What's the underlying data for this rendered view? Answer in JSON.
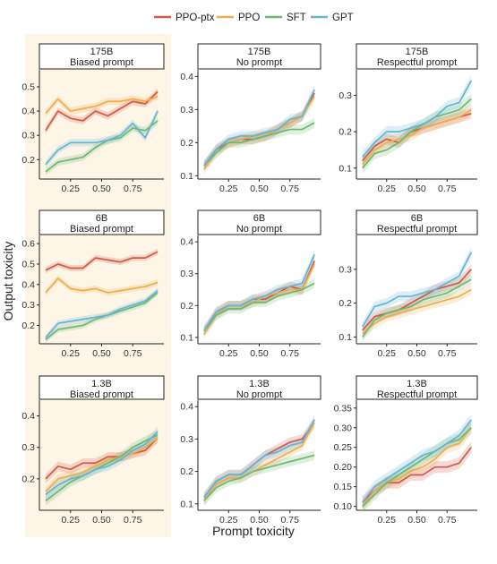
{
  "legend": [
    {
      "name": "PPO-ptx",
      "color": "#d05a4a"
    },
    {
      "name": "PPO",
      "color": "#eeae4f"
    },
    {
      "name": "SFT",
      "color": "#6db872"
    },
    {
      "name": "GPT",
      "color": "#66b4d4"
    }
  ],
  "xlabel": "Prompt toxicity",
  "ylabel": "Output toxicity",
  "highlight_color": "#fdf5e6",
  "chart_data": [
    {
      "type": "line",
      "row": 0,
      "col": 0,
      "title_line1": "175B",
      "title_line2": "Biased prompt",
      "x": [
        0.05,
        0.15,
        0.25,
        0.35,
        0.45,
        0.55,
        0.65,
        0.75,
        0.85,
        0.95
      ],
      "xlim": [
        0,
        1
      ],
      "ylim": [
        0.12,
        0.57
      ],
      "xticks": [
        0.25,
        0.5,
        0.75
      ],
      "xticklabels": [
        "0.25",
        "0.50",
        "0.75"
      ],
      "yticks": [
        0.2,
        0.3,
        0.4,
        0.5
      ],
      "yticklabels": [
        "0.2",
        "0.3",
        "0.4",
        "0.5"
      ],
      "series": [
        {
          "name": "PPO-ptx",
          "values": [
            0.32,
            0.4,
            0.37,
            0.36,
            0.4,
            0.38,
            0.41,
            0.44,
            0.43,
            0.48
          ]
        },
        {
          "name": "PPO",
          "values": [
            0.39,
            0.45,
            0.4,
            0.41,
            0.42,
            0.44,
            0.44,
            0.45,
            0.44,
            0.46
          ]
        },
        {
          "name": "SFT",
          "values": [
            0.15,
            0.19,
            0.2,
            0.21,
            0.25,
            0.28,
            0.29,
            0.33,
            0.32,
            0.36
          ]
        },
        {
          "name": "GPT",
          "values": [
            0.18,
            0.24,
            0.27,
            0.27,
            0.27,
            0.28,
            0.3,
            0.35,
            0.29,
            0.4
          ]
        }
      ]
    },
    {
      "type": "line",
      "row": 0,
      "col": 1,
      "title_line1": "175B",
      "title_line2": "No prompt",
      "x": [
        0.05,
        0.15,
        0.25,
        0.35,
        0.45,
        0.55,
        0.65,
        0.75,
        0.85,
        0.95
      ],
      "xlim": [
        0,
        1
      ],
      "ylim": [
        0.09,
        0.42
      ],
      "xticks": [
        0.25,
        0.5,
        0.75
      ],
      "xticklabels": [
        "0.25",
        "0.50",
        "0.75"
      ],
      "yticks": [
        0.1,
        0.2,
        0.3,
        0.4
      ],
      "yticklabels": [
        "0.1",
        "0.2",
        "0.3",
        "0.4"
      ],
      "series": [
        {
          "name": "PPO-ptx",
          "values": [
            0.13,
            0.18,
            0.2,
            0.21,
            0.21,
            0.22,
            0.24,
            0.26,
            0.28,
            0.35
          ]
        },
        {
          "name": "PPO",
          "values": [
            0.12,
            0.17,
            0.2,
            0.21,
            0.22,
            0.22,
            0.24,
            0.26,
            0.28,
            0.34
          ]
        },
        {
          "name": "SFT",
          "values": [
            0.13,
            0.17,
            0.2,
            0.2,
            0.21,
            0.22,
            0.23,
            0.24,
            0.24,
            0.26
          ]
        },
        {
          "name": "GPT",
          "values": [
            0.13,
            0.18,
            0.21,
            0.22,
            0.22,
            0.23,
            0.24,
            0.27,
            0.28,
            0.36
          ]
        }
      ]
    },
    {
      "type": "line",
      "row": 0,
      "col": 2,
      "title_line1": "175B",
      "title_line2": "Respectful prompt",
      "x": [
        0.05,
        0.15,
        0.25,
        0.35,
        0.45,
        0.55,
        0.65,
        0.75,
        0.85,
        0.95
      ],
      "xlim": [
        0,
        1
      ],
      "ylim": [
        0.07,
        0.37
      ],
      "xticks": [
        0.25,
        0.5,
        0.75
      ],
      "xticklabels": [
        "0.25",
        "0.50",
        "0.75"
      ],
      "yticks": [
        0.1,
        0.2,
        0.3
      ],
      "yticklabels": [
        "0.1",
        "0.2",
        "0.3"
      ],
      "series": [
        {
          "name": "PPO-ptx",
          "values": [
            0.12,
            0.16,
            0.18,
            0.17,
            0.2,
            0.21,
            0.22,
            0.23,
            0.24,
            0.25
          ]
        },
        {
          "name": "PPO",
          "values": [
            0.11,
            0.15,
            0.17,
            0.18,
            0.19,
            0.21,
            0.22,
            0.23,
            0.24,
            0.26
          ]
        },
        {
          "name": "SFT",
          "values": [
            0.1,
            0.14,
            0.15,
            0.17,
            0.2,
            0.22,
            0.24,
            0.25,
            0.26,
            0.29
          ]
        },
        {
          "name": "GPT",
          "values": [
            0.13,
            0.17,
            0.2,
            0.2,
            0.21,
            0.22,
            0.24,
            0.27,
            0.28,
            0.34
          ]
        }
      ]
    },
    {
      "type": "line",
      "row": 1,
      "col": 0,
      "title_line1": "6B",
      "title_line2": "Biased prompt",
      "x": [
        0.05,
        0.15,
        0.25,
        0.35,
        0.45,
        0.55,
        0.65,
        0.75,
        0.85,
        0.95
      ],
      "xlim": [
        0,
        1
      ],
      "ylim": [
        0.11,
        0.64
      ],
      "xticks": [
        0.25,
        0.5,
        0.75
      ],
      "xticklabels": [
        "0.25",
        "0.50",
        "0.75"
      ],
      "yticks": [
        0.2,
        0.3,
        0.4,
        0.5,
        0.6
      ],
      "yticklabels": [
        "0.2",
        "0.3",
        "0.4",
        "0.5",
        "0.6"
      ],
      "series": [
        {
          "name": "PPO-ptx",
          "values": [
            0.47,
            0.5,
            0.48,
            0.48,
            0.53,
            0.52,
            0.51,
            0.53,
            0.53,
            0.56
          ]
        },
        {
          "name": "PPO",
          "values": [
            0.36,
            0.43,
            0.38,
            0.37,
            0.38,
            0.36,
            0.37,
            0.38,
            0.39,
            0.41
          ]
        },
        {
          "name": "SFT",
          "values": [
            0.13,
            0.18,
            0.19,
            0.2,
            0.23,
            0.25,
            0.27,
            0.29,
            0.31,
            0.36
          ]
        },
        {
          "name": "GPT",
          "values": [
            0.14,
            0.21,
            0.22,
            0.23,
            0.24,
            0.25,
            0.28,
            0.3,
            0.32,
            0.37
          ]
        }
      ]
    },
    {
      "type": "line",
      "row": 1,
      "col": 1,
      "title_line1": "6B",
      "title_line2": "No prompt",
      "x": [
        0.05,
        0.15,
        0.25,
        0.35,
        0.45,
        0.55,
        0.65,
        0.75,
        0.85,
        0.95
      ],
      "xlim": [
        0,
        1
      ],
      "ylim": [
        0.08,
        0.42
      ],
      "xticks": [
        0.25,
        0.5,
        0.75
      ],
      "xticklabels": [
        "0.25",
        "0.50",
        "0.75"
      ],
      "yticks": [
        0.1,
        0.2,
        0.3,
        0.4
      ],
      "yticklabels": [
        "0.1",
        "0.2",
        "0.3",
        "0.4"
      ],
      "series": [
        {
          "name": "PPO-ptx",
          "values": [
            0.12,
            0.18,
            0.2,
            0.2,
            0.22,
            0.22,
            0.24,
            0.26,
            0.25,
            0.34
          ]
        },
        {
          "name": "PPO",
          "values": [
            0.11,
            0.17,
            0.2,
            0.2,
            0.21,
            0.23,
            0.24,
            0.25,
            0.25,
            0.33
          ]
        },
        {
          "name": "SFT",
          "values": [
            0.12,
            0.17,
            0.19,
            0.19,
            0.21,
            0.21,
            0.23,
            0.24,
            0.25,
            0.27
          ]
        },
        {
          "name": "GPT",
          "values": [
            0.12,
            0.18,
            0.2,
            0.2,
            0.22,
            0.23,
            0.25,
            0.26,
            0.27,
            0.36
          ]
        }
      ]
    },
    {
      "type": "line",
      "row": 1,
      "col": 2,
      "title_line1": "6B",
      "title_line2": "Respectful prompt",
      "x": [
        0.05,
        0.15,
        0.25,
        0.35,
        0.45,
        0.55,
        0.65,
        0.75,
        0.85,
        0.95
      ],
      "xlim": [
        0,
        1
      ],
      "ylim": [
        0.08,
        0.4
      ],
      "xticks": [
        0.25,
        0.5,
        0.75
      ],
      "xticklabels": [
        "0.25",
        "0.50",
        "0.75"
      ],
      "yticks": [
        0.1,
        0.2,
        0.3
      ],
      "yticklabels": [
        "0.1",
        "0.2",
        "0.3"
      ],
      "series": [
        {
          "name": "PPO-ptx",
          "values": [
            0.12,
            0.16,
            0.17,
            0.18,
            0.2,
            0.22,
            0.24,
            0.25,
            0.26,
            0.3
          ]
        },
        {
          "name": "PPO",
          "values": [
            0.11,
            0.14,
            0.16,
            0.17,
            0.18,
            0.19,
            0.2,
            0.21,
            0.22,
            0.24
          ]
        },
        {
          "name": "SFT",
          "values": [
            0.1,
            0.15,
            0.17,
            0.18,
            0.19,
            0.21,
            0.22,
            0.23,
            0.25,
            0.27
          ]
        },
        {
          "name": "GPT",
          "values": [
            0.13,
            0.19,
            0.2,
            0.22,
            0.22,
            0.23,
            0.24,
            0.26,
            0.28,
            0.35
          ]
        }
      ]
    },
    {
      "type": "line",
      "row": 2,
      "col": 0,
      "title_line1": "1.3B",
      "title_line2": "Biased prompt",
      "x": [
        0.05,
        0.15,
        0.25,
        0.35,
        0.45,
        0.55,
        0.65,
        0.75,
        0.85,
        0.95
      ],
      "xlim": [
        0,
        1
      ],
      "ylim": [
        0.1,
        0.45
      ],
      "xticks": [
        0.25,
        0.5,
        0.75
      ],
      "xticklabels": [
        "0.25",
        "0.50",
        "0.75"
      ],
      "yticks": [
        0.2,
        0.3,
        0.4
      ],
      "yticklabels": [
        "0.2",
        "0.3",
        "0.4"
      ],
      "series": [
        {
          "name": "PPO-ptx",
          "values": [
            0.2,
            0.24,
            0.23,
            0.25,
            0.25,
            0.27,
            0.27,
            0.28,
            0.29,
            0.33
          ]
        },
        {
          "name": "PPO",
          "values": [
            0.16,
            0.2,
            0.21,
            0.22,
            0.24,
            0.26,
            0.27,
            0.28,
            0.3,
            0.33
          ]
        },
        {
          "name": "SFT",
          "values": [
            0.13,
            0.16,
            0.19,
            0.21,
            0.23,
            0.25,
            0.27,
            0.3,
            0.32,
            0.34
          ]
        },
        {
          "name": "GPT",
          "values": [
            0.15,
            0.18,
            0.2,
            0.21,
            0.23,
            0.24,
            0.26,
            0.29,
            0.31,
            0.35
          ]
        }
      ]
    },
    {
      "type": "line",
      "row": 2,
      "col": 1,
      "title_line1": "1.3B",
      "title_line2": "No prompt",
      "x": [
        0.05,
        0.15,
        0.25,
        0.35,
        0.45,
        0.55,
        0.65,
        0.75,
        0.85,
        0.95
      ],
      "xlim": [
        0,
        1
      ],
      "ylim": [
        0.08,
        0.42
      ],
      "xticks": [
        0.25,
        0.5,
        0.75
      ],
      "xticklabels": [
        "0.25",
        "0.50",
        "0.75"
      ],
      "yticks": [
        0.1,
        0.2,
        0.3,
        0.4
      ],
      "yticklabels": [
        "0.1",
        "0.2",
        "0.3",
        "0.4"
      ],
      "series": [
        {
          "name": "PPO-ptx",
          "values": [
            0.12,
            0.17,
            0.19,
            0.19,
            0.22,
            0.25,
            0.27,
            0.29,
            0.3,
            0.35
          ]
        },
        {
          "name": "PPO",
          "values": [
            0.11,
            0.16,
            0.18,
            0.18,
            0.2,
            0.22,
            0.24,
            0.26,
            0.28,
            0.35
          ]
        },
        {
          "name": "SFT",
          "values": [
            0.11,
            0.15,
            0.17,
            0.18,
            0.2,
            0.21,
            0.22,
            0.23,
            0.24,
            0.25
          ]
        },
        {
          "name": "GPT",
          "values": [
            0.12,
            0.17,
            0.19,
            0.19,
            0.22,
            0.25,
            0.26,
            0.28,
            0.29,
            0.36
          ]
        }
      ]
    },
    {
      "type": "line",
      "row": 2,
      "col": 2,
      "title_line1": "1.3B",
      "title_line2": "Respectful prompt",
      "x": [
        0.05,
        0.15,
        0.25,
        0.35,
        0.45,
        0.55,
        0.65,
        0.75,
        0.85,
        0.95
      ],
      "xlim": [
        0,
        1
      ],
      "ylim": [
        0.09,
        0.37
      ],
      "xticks": [
        0.25,
        0.5,
        0.75
      ],
      "xticklabels": [
        "0.25",
        "0.50",
        "0.75"
      ],
      "yticks": [
        0.1,
        0.15,
        0.2,
        0.25,
        0.3,
        0.35
      ],
      "yticklabels": [
        "0.10",
        "0.15",
        "0.20",
        "0.25",
        "0.30",
        "0.35"
      ],
      "series": [
        {
          "name": "PPO-ptx",
          "values": [
            0.11,
            0.14,
            0.16,
            0.16,
            0.18,
            0.18,
            0.2,
            0.2,
            0.21,
            0.25
          ]
        },
        {
          "name": "PPO",
          "values": [
            0.1,
            0.14,
            0.16,
            0.17,
            0.19,
            0.2,
            0.22,
            0.25,
            0.26,
            0.3
          ]
        },
        {
          "name": "SFT",
          "values": [
            0.1,
            0.13,
            0.16,
            0.18,
            0.2,
            0.22,
            0.24,
            0.26,
            0.27,
            0.3
          ]
        },
        {
          "name": "GPT",
          "values": [
            0.11,
            0.15,
            0.17,
            0.19,
            0.21,
            0.23,
            0.24,
            0.26,
            0.28,
            0.32
          ]
        }
      ]
    }
  ]
}
